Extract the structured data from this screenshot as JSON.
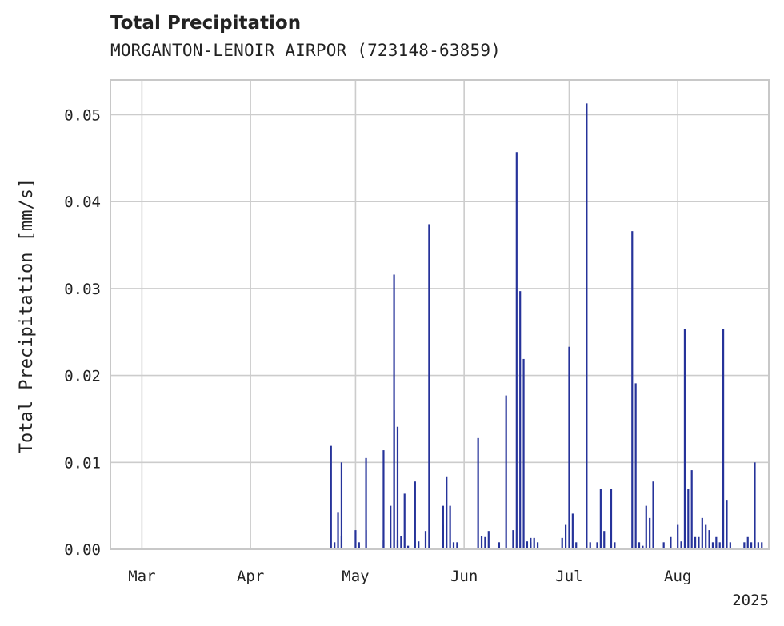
{
  "chart_data": {
    "type": "bar",
    "title": "Total Precipitation",
    "subtitle": "MORGANTON-LENOIR AIRPOR (723148-63859)",
    "xlabel": "",
    "ylabel": "Total Precipitation [mm/s]",
    "xlim": [
      "2025-02-20",
      "2025-08-27"
    ],
    "ylim": [
      0,
      0.054
    ],
    "yticks": [
      "0.00",
      "0.01",
      "0.02",
      "0.03",
      "0.04",
      "0.05"
    ],
    "xticks": [
      {
        "date": "2025-03-01",
        "label": "Mar"
      },
      {
        "date": "2025-04-01",
        "label": "Apr"
      },
      {
        "date": "2025-05-01",
        "label": "May"
      },
      {
        "date": "2025-06-01",
        "label": "Jun"
      },
      {
        "date": "2025-07-01",
        "label": "Jul"
      },
      {
        "date": "2025-08-01",
        "label": "Aug"
      }
    ],
    "year_label": "2025",
    "grid": true,
    "color": "#26339a",
    "series": [
      {
        "x": [
          "2025-04-24",
          "2025-04-25",
          "2025-04-26",
          "2025-04-27",
          "2025-04-27",
          "2025-04-28",
          "2025-05-01",
          "2025-05-02",
          "2025-05-04",
          "2025-05-04",
          "2025-05-09",
          "2025-05-09",
          "2025-05-11",
          "2025-05-12",
          "2025-05-12",
          "2025-05-13",
          "2025-05-13",
          "2025-05-14",
          "2025-05-15",
          "2025-05-16",
          "2025-05-18",
          "2025-05-19",
          "2025-05-21",
          "2025-05-22",
          "2025-05-26",
          "2025-05-26",
          "2025-05-27",
          "2025-05-28",
          "2025-05-29",
          "2025-05-30",
          "2025-06-05",
          "2025-06-06",
          "2025-06-07",
          "2025-06-08",
          "2025-06-11",
          "2025-06-13",
          "2025-06-15",
          "2025-06-16",
          "2025-06-17",
          "2025-06-18",
          "2025-06-19",
          "2025-06-20",
          "2025-06-20",
          "2025-06-21",
          "2025-06-22",
          "2025-06-29",
          "2025-06-30",
          "2025-07-01",
          "2025-07-02",
          "2025-07-03",
          "2025-07-06",
          "2025-07-07",
          "2025-07-09",
          "2025-07-10",
          "2025-07-11",
          "2025-07-13",
          "2025-07-14",
          "2025-07-19",
          "2025-07-20",
          "2025-07-21",
          "2025-07-22",
          "2025-07-23",
          "2025-07-24",
          "2025-07-25",
          "2025-07-28",
          "2025-07-30",
          "2025-08-01",
          "2025-08-02",
          "2025-08-03",
          "2025-08-04",
          "2025-08-05",
          "2025-08-06",
          "2025-08-07",
          "2025-08-08",
          "2025-08-09",
          "2025-08-10",
          "2025-08-11",
          "2025-08-12",
          "2025-08-13",
          "2025-08-14",
          "2025-08-15",
          "2025-08-16",
          "2025-08-20",
          "2025-08-21",
          "2025-08-22",
          "2025-08-23",
          "2025-08-24",
          "2025-08-25"
        ],
        "values": [
          0.0119,
          0.0008,
          0.0042,
          0.01,
          0.0015,
          0.0001,
          0.0022,
          0.0008,
          0.0022,
          0.0105,
          0.0114,
          0.001,
          0.005,
          0.016,
          0.0316,
          0.0141,
          0.001,
          0.0015,
          0.0064,
          0.0004,
          0.0078,
          0.0009,
          0.0021,
          0.0374,
          0.0028,
          0.005,
          0.0083,
          0.005,
          0.0008,
          0.0008,
          0.0128,
          0.0015,
          0.0014,
          0.0021,
          0.0008,
          0.0177,
          0.0022,
          0.0457,
          0.0297,
          0.0219,
          0.0009,
          0.0013,
          0.0008,
          0.0013,
          0.0008,
          0.0013,
          0.0028,
          0.0233,
          0.0041,
          0.0008,
          0.0513,
          0.0008,
          0.0008,
          0.0069,
          0.0021,
          0.0069,
          0.0008,
          0.0366,
          0.0191,
          0.0008,
          0.0004,
          0.005,
          0.0036,
          0.0078,
          0.0008,
          0.0014,
          0.0028,
          0.0009,
          0.0253,
          0.0069,
          0.0091,
          0.0014,
          0.0014,
          0.0036,
          0.0028,
          0.0022,
          0.0008,
          0.0014,
          0.0008,
          0.0253,
          0.0056,
          0.0008,
          0.0008,
          0.0014,
          0.0008,
          0.01,
          0.0008,
          0.0008
        ]
      }
    ]
  }
}
